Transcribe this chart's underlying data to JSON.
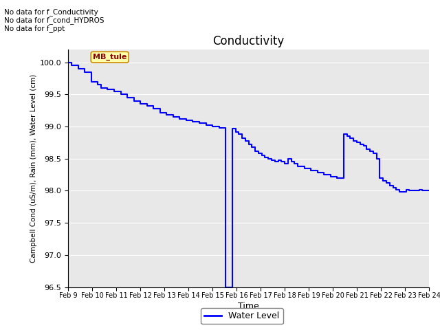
{
  "title": "Conductivity",
  "xlabel": "Time",
  "ylabel": "Campbell Cond (uS/m), Rain (mm), Water Level (cm)",
  "ylim": [
    96.5,
    100.2
  ],
  "background_color": "#e8e8e8",
  "line_color": "blue",
  "annotations_text": [
    "No data for f_Conductivity",
    "No data for f_cond_HYDROS",
    "No data for f_ppt"
  ],
  "tooltip_text": "MB_tule",
  "tooltip_color": "#ffffaa",
  "tooltip_border": "#cc8800",
  "tooltip_text_color": "#880000",
  "x_ticks": [
    "Feb 9",
    "Feb 10",
    "Feb 11",
    "Feb 12",
    "Feb 13",
    "Feb 14",
    "Feb 15",
    "Feb 16",
    "Feb 17",
    "Feb 18",
    "Feb 19",
    "Feb 20",
    "Feb 21",
    "Feb 22",
    "Feb 23",
    "Feb 24"
  ],
  "legend_label": "Water Level",
  "water_level_data": [
    [
      0.0,
      100.0
    ],
    [
      0.1,
      99.95
    ],
    [
      0.3,
      99.9
    ],
    [
      0.5,
      99.85
    ],
    [
      0.7,
      99.7
    ],
    [
      0.9,
      99.65
    ],
    [
      1.0,
      99.6
    ],
    [
      1.2,
      99.58
    ],
    [
      1.4,
      99.55
    ],
    [
      1.6,
      99.5
    ],
    [
      1.8,
      99.45
    ],
    [
      2.0,
      99.4
    ],
    [
      2.2,
      99.35
    ],
    [
      2.4,
      99.32
    ],
    [
      2.6,
      99.28
    ],
    [
      2.8,
      99.22
    ],
    [
      3.0,
      99.18
    ],
    [
      3.2,
      99.15
    ],
    [
      3.4,
      99.12
    ],
    [
      3.6,
      99.1
    ],
    [
      3.8,
      99.08
    ],
    [
      4.0,
      99.05
    ],
    [
      4.2,
      99.02
    ],
    [
      4.4,
      99.0
    ],
    [
      4.6,
      98.98
    ],
    [
      4.8,
      96.5
    ],
    [
      5.0,
      98.97
    ],
    [
      5.1,
      98.92
    ],
    [
      5.2,
      98.88
    ],
    [
      5.3,
      98.82
    ],
    [
      5.4,
      98.78
    ],
    [
      5.5,
      98.72
    ],
    [
      5.6,
      98.68
    ],
    [
      5.7,
      98.62
    ],
    [
      5.8,
      98.58
    ],
    [
      5.9,
      98.55
    ],
    [
      6.0,
      98.52
    ],
    [
      6.1,
      98.5
    ],
    [
      6.2,
      98.48
    ],
    [
      6.3,
      98.45
    ],
    [
      6.4,
      98.48
    ],
    [
      6.5,
      98.45
    ],
    [
      6.6,
      98.42
    ],
    [
      6.7,
      98.5
    ],
    [
      6.8,
      98.45
    ],
    [
      6.9,
      98.42
    ],
    [
      7.0,
      98.38
    ],
    [
      7.2,
      98.35
    ],
    [
      7.4,
      98.32
    ],
    [
      7.6,
      98.28
    ],
    [
      7.8,
      98.25
    ],
    [
      8.0,
      98.22
    ],
    [
      8.2,
      98.2
    ],
    [
      8.4,
      98.88
    ],
    [
      8.5,
      98.85
    ],
    [
      8.6,
      98.82
    ],
    [
      8.7,
      98.78
    ],
    [
      8.8,
      98.75
    ],
    [
      8.9,
      98.72
    ],
    [
      9.0,
      98.7
    ],
    [
      9.1,
      98.65
    ],
    [
      9.2,
      98.62
    ],
    [
      9.3,
      98.58
    ],
    [
      9.4,
      98.5
    ],
    [
      9.5,
      98.2
    ],
    [
      9.6,
      98.15
    ],
    [
      9.7,
      98.12
    ],
    [
      9.8,
      98.08
    ],
    [
      9.9,
      98.05
    ],
    [
      10.0,
      98.02
    ],
    [
      10.1,
      97.98
    ],
    [
      10.2,
      97.98
    ],
    [
      10.3,
      98.02
    ],
    [
      10.4,
      98.0
    ],
    [
      10.5,
      98.0
    ],
    [
      10.6,
      98.0
    ],
    [
      10.7,
      98.02
    ],
    [
      10.8,
      98.0
    ],
    [
      10.9,
      98.0
    ],
    [
      11.0,
      98.0
    ]
  ]
}
